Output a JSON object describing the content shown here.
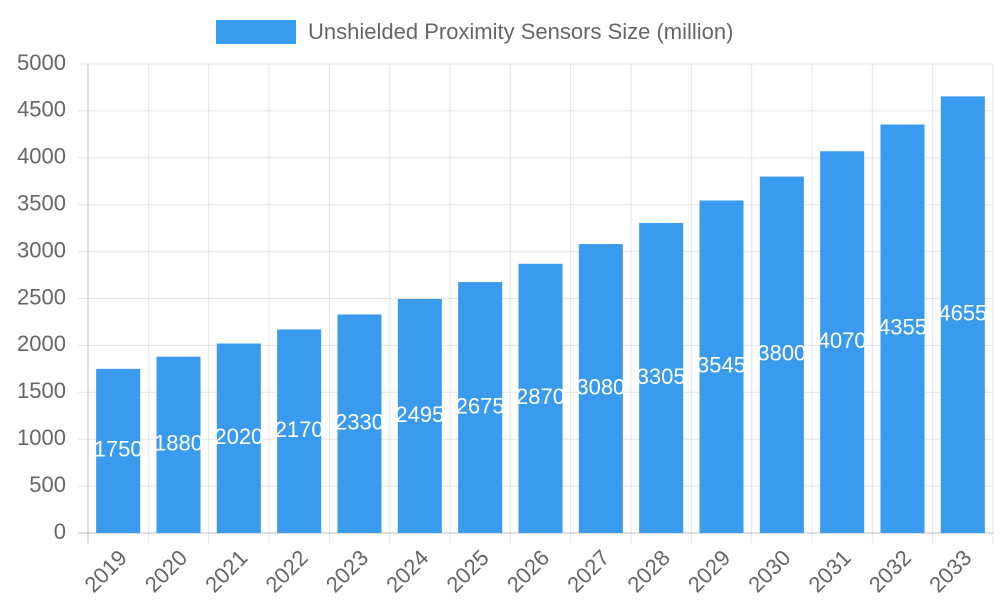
{
  "chart_data": {
    "type": "bar",
    "categories": [
      "2019",
      "2020",
      "2021",
      "2022",
      "2023",
      "2024",
      "2025",
      "2026",
      "2027",
      "2028",
      "2029",
      "2030",
      "2031",
      "2032",
      "2033"
    ],
    "series": [
      {
        "name": "Unshielded Proximity Sensors Size (million)",
        "color": "#3a9bee",
        "values": [
          1750,
          1880,
          2020,
          2170,
          2330,
          2495,
          2675,
          2870,
          3080,
          3305,
          3545,
          3800,
          4070,
          4355,
          4655
        ]
      }
    ],
    "ylim": [
      0,
      5000
    ],
    "yticks": [
      0,
      500,
      1000,
      1500,
      2000,
      2500,
      3000,
      3500,
      4000,
      4500,
      5000
    ],
    "grid": true,
    "legend": "top"
  }
}
